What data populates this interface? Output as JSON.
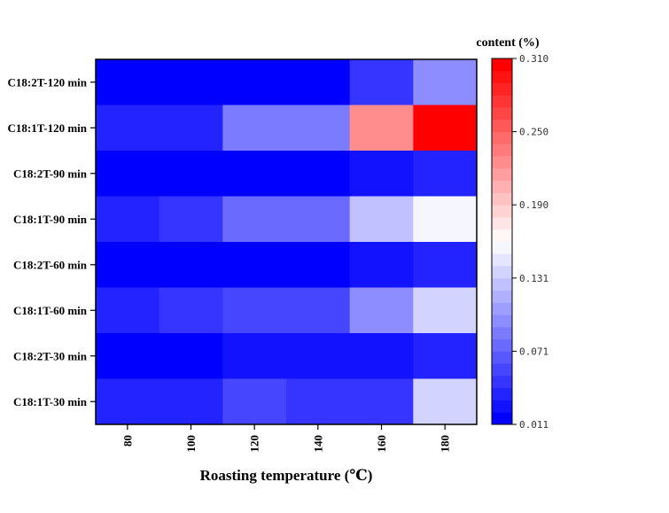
{
  "chart_data": {
    "type": "heatmap",
    "xlabel": "Roasting temperature (℃)",
    "x_categories": [
      "80",
      "100",
      "120",
      "140",
      "160",
      "180"
    ],
    "y_categories": [
      "C18:2T-120 min",
      "C18:1T-120 min",
      "C18:2T-90 min",
      "C18:1T-90 min",
      "C18:2T-60 min",
      "C18:1T-60 min",
      "C18:2T-30 min",
      "C18:1T-30 min"
    ],
    "values": [
      [
        0.011,
        0.011,
        0.011,
        0.02,
        0.05,
        0.095
      ],
      [
        0.04,
        0.04,
        0.09,
        0.09,
        0.225,
        0.31
      ],
      [
        0.011,
        0.011,
        0.011,
        0.011,
        0.022,
        0.04
      ],
      [
        0.035,
        0.045,
        0.08,
        0.08,
        0.13,
        0.16
      ],
      [
        0.011,
        0.011,
        0.011,
        0.011,
        0.025,
        0.035
      ],
      [
        0.035,
        0.045,
        0.055,
        0.055,
        0.095,
        0.14
      ],
      [
        0.011,
        0.011,
        0.022,
        0.022,
        0.022,
        0.035
      ],
      [
        0.035,
        0.035,
        0.06,
        0.045,
        0.045,
        0.135
      ]
    ],
    "colorbar": {
      "title": "content (%)",
      "min": 0.011,
      "max": 0.31,
      "ticks": [
        "0.310",
        "0.250",
        "0.190",
        "0.131",
        "0.071",
        "0.011"
      ],
      "low_color": "#0000ff",
      "mid_color": "#ffffff",
      "high_color": "#ff0000",
      "levels": 30
    }
  }
}
